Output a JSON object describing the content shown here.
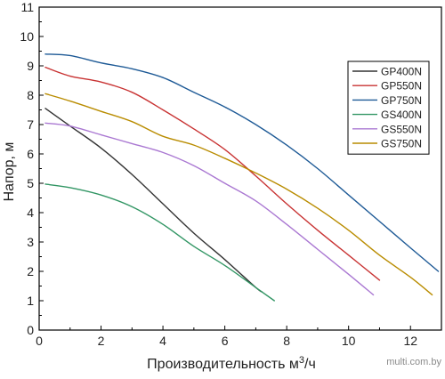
{
  "chart_data": {
    "type": "line",
    "title": "",
    "xlabel": "Производительность м³/ч",
    "ylabel": "Напор, м",
    "xlim": [
      0,
      13
    ],
    "ylim": [
      0,
      11
    ],
    "x_ticks": [
      "0",
      "2",
      "4",
      "6",
      "8",
      "10",
      "12"
    ],
    "y_ticks": [
      "0",
      "1",
      "2",
      "3",
      "4",
      "5",
      "6",
      "7",
      "8",
      "9",
      "10",
      "11"
    ],
    "grid": false,
    "legend_position": "top-right",
    "series": [
      {
        "name": "GP400N",
        "color": "#333333",
        "x": [
          0.2,
          1,
          2,
          3,
          4,
          5,
          6,
          7,
          7.2
        ],
        "y": [
          7.55,
          6.95,
          6.2,
          5.3,
          4.3,
          3.3,
          2.4,
          1.45,
          1.3
        ]
      },
      {
        "name": "GP550N",
        "color": "#c83232",
        "x": [
          0.2,
          1,
          2,
          3,
          4,
          5,
          6,
          7,
          8,
          9,
          10,
          11
        ],
        "y": [
          8.95,
          8.65,
          8.45,
          8.1,
          7.5,
          6.85,
          6.15,
          5.25,
          4.3,
          3.4,
          2.55,
          1.7
        ]
      },
      {
        "name": "GP750N",
        "color": "#1e5a96",
        "x": [
          0.2,
          1,
          2,
          3,
          4,
          5,
          6,
          7,
          8,
          9,
          10,
          11,
          12,
          12.9
        ],
        "y": [
          9.4,
          9.35,
          9.1,
          8.9,
          8.6,
          8.1,
          7.6,
          7.0,
          6.3,
          5.5,
          4.6,
          3.7,
          2.8,
          2.0
        ]
      },
      {
        "name": "GS400N",
        "color": "#329664",
        "x": [
          0.2,
          1,
          2,
          3,
          4,
          5,
          6,
          7,
          7.6
        ],
        "y": [
          4.97,
          4.85,
          4.6,
          4.2,
          3.6,
          2.85,
          2.2,
          1.45,
          1.0
        ]
      },
      {
        "name": "GS550N",
        "color": "#aa78d2",
        "x": [
          0.2,
          1,
          2,
          3,
          4,
          5,
          6,
          7,
          8,
          9,
          10,
          10.8
        ],
        "y": [
          7.05,
          6.95,
          6.65,
          6.35,
          6.05,
          5.6,
          5.0,
          4.4,
          3.6,
          2.75,
          1.9,
          1.2
        ]
      },
      {
        "name": "GS750N",
        "color": "#b98c00",
        "x": [
          0.2,
          1,
          2,
          3,
          4,
          5,
          6,
          7,
          8,
          9,
          10,
          11,
          12,
          12.7
        ],
        "y": [
          8.05,
          7.8,
          7.45,
          7.1,
          6.6,
          6.3,
          5.85,
          5.35,
          4.8,
          4.15,
          3.4,
          2.55,
          1.8,
          1.2
        ]
      }
    ]
  },
  "watermark": "multi.com.by"
}
